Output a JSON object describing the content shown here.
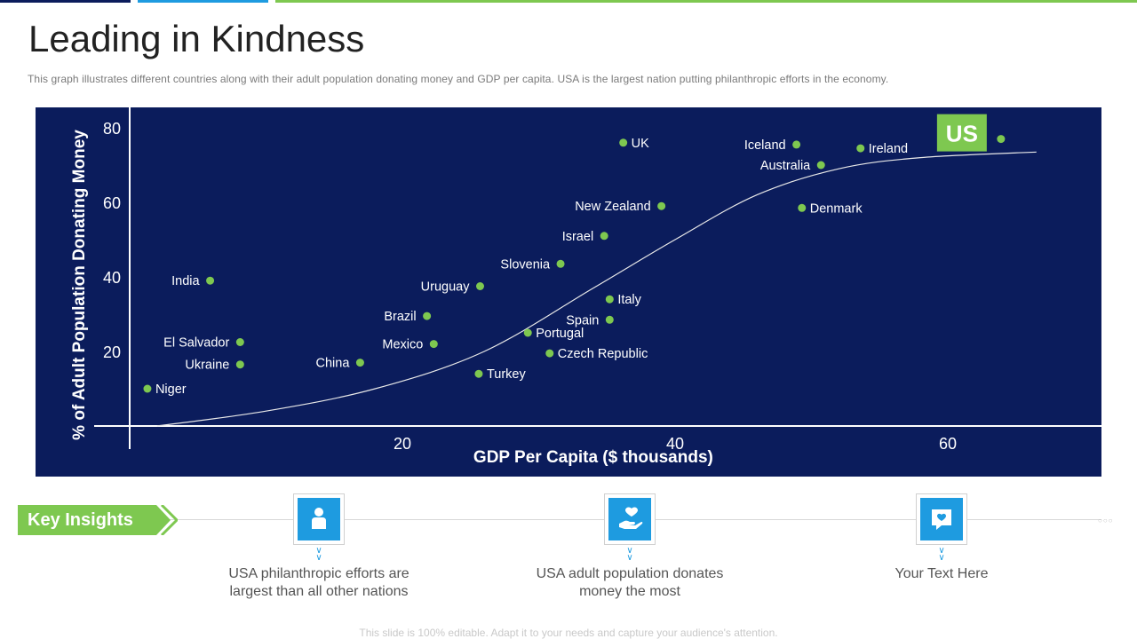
{
  "title": "Leading in Kindness",
  "subtitle": "This graph illustrates different  countries along with their adult population donating money and GDP per capita. USA is the largest nation putting philanthropic efforts  in the economy.",
  "footer": "This slide is 100% editable. Adapt it to your needs and capture your audience's attention.",
  "colors": {
    "panel": "#0b1c5c",
    "dot": "#7ec850",
    "accent_green": "#7ec850",
    "accent_blue": "#1e9be0",
    "topbar_navy": "#0b1c5c"
  },
  "chart_data": {
    "type": "scatter",
    "xlabel": "GDP Per Capita ($ thousands)",
    "ylabel": "% of Adult Population Donating Money",
    "x_ticks": [
      20,
      40,
      60
    ],
    "y_ticks": [
      20,
      40,
      60,
      80
    ],
    "xlim": [
      0,
      68
    ],
    "ylim": [
      0,
      85
    ],
    "grid": false,
    "highlight": "US",
    "points": [
      {
        "label": "UK",
        "x": 36.2,
        "y": 76,
        "label_side": "right"
      },
      {
        "label": "Iceland",
        "x": 48.9,
        "y": 75.5,
        "label_side": "left"
      },
      {
        "label": "Ireland",
        "x": 53.6,
        "y": 74.5,
        "label_side": "right"
      },
      {
        "label": "Australia",
        "x": 50.7,
        "y": 70,
        "label_side": "left"
      },
      {
        "label": "US",
        "x": 63.9,
        "y": 77,
        "label_side": "none"
      },
      {
        "label": "New Zealand",
        "x": 39.0,
        "y": 59,
        "label_side": "left"
      },
      {
        "label": "Denmark",
        "x": 49.3,
        "y": 58.5,
        "label_side": "right"
      },
      {
        "label": "Israel",
        "x": 34.8,
        "y": 51,
        "label_side": "left"
      },
      {
        "label": "Slovenia",
        "x": 31.6,
        "y": 43.5,
        "label_side": "left"
      },
      {
        "label": "Uruguay",
        "x": 25.7,
        "y": 37.5,
        "label_side": "left"
      },
      {
        "label": "Italy",
        "x": 35.2,
        "y": 34,
        "label_side": "right"
      },
      {
        "label": "Spain",
        "x": 35.2,
        "y": 28.5,
        "label_side": "left"
      },
      {
        "label": "Portugal",
        "x": 29.2,
        "y": 25,
        "label_side": "right"
      },
      {
        "label": "Czech Republic",
        "x": 30.8,
        "y": 19.5,
        "label_side": "right"
      },
      {
        "label": "Brazil",
        "x": 21.8,
        "y": 29.5,
        "label_side": "left"
      },
      {
        "label": "Mexico",
        "x": 22.3,
        "y": 22,
        "label_side": "left"
      },
      {
        "label": "Turkey",
        "x": 25.6,
        "y": 14,
        "label_side": "right"
      },
      {
        "label": "China",
        "x": 16.9,
        "y": 17,
        "label_side": "left"
      },
      {
        "label": "India",
        "x": 5.9,
        "y": 39,
        "label_side": "left"
      },
      {
        "label": "El Salvador",
        "x": 8.1,
        "y": 22.5,
        "label_side": "left"
      },
      {
        "label": "Ukraine",
        "x": 8.1,
        "y": 16.5,
        "label_side": "left"
      },
      {
        "label": "Niger",
        "x": 1.3,
        "y": 10,
        "label_side": "right"
      }
    ],
    "trend": [
      [
        2,
        0
      ],
      [
        10,
        4
      ],
      [
        18,
        10
      ],
      [
        26,
        20
      ],
      [
        34,
        37
      ],
      [
        40,
        50
      ],
      [
        46,
        62
      ],
      [
        52,
        69
      ],
      [
        58,
        72
      ],
      [
        66.5,
        73.5
      ]
    ]
  },
  "key_insights": {
    "label": "Key Insights",
    "items": [
      {
        "icon": "person-icon",
        "text_line1": "USA philanthropic efforts are",
        "text_line2": "largest than all other nations"
      },
      {
        "icon": "heart-hand-icon",
        "text_line1": "USA adult population donates",
        "text_line2": "money the most"
      },
      {
        "icon": "heart-chat-icon",
        "text_line1": "Your Text Here",
        "text_line2": ""
      }
    ]
  }
}
